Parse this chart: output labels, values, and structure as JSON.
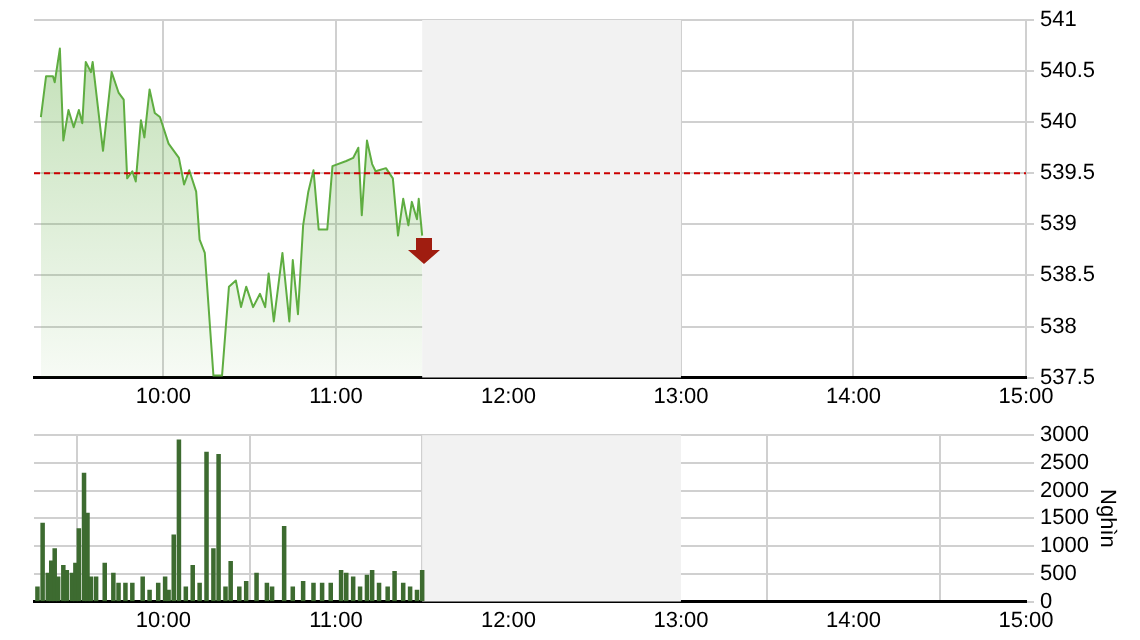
{
  "chart_data": [
    {
      "type": "area",
      "xlim": [
        9.25,
        15
      ],
      "xticks": [
        {
          "value": 10,
          "label": "10:00"
        },
        {
          "value": 11,
          "label": "11:00"
        },
        {
          "value": 12,
          "label": "12:00"
        },
        {
          "value": 13,
          "label": "13:00"
        },
        {
          "value": 14,
          "label": "14:00"
        },
        {
          "value": 15,
          "label": "15:00"
        }
      ],
      "ylim": [
        537.5,
        541
      ],
      "yticks": [
        537.5,
        538,
        538.5,
        539,
        539.5,
        540,
        540.5,
        541
      ],
      "grid": true,
      "legend": false,
      "ref_lines": [
        {
          "axis": "y",
          "value": 539.5,
          "color": "#cc0000",
          "line_style": "dashed"
        }
      ],
      "bands": [
        {
          "axis": "x",
          "from": 11.5,
          "to": 13,
          "color": "#f2f2f2"
        }
      ],
      "series": [
        {
          "color": "#5fad41",
          "x": [
            9.29,
            9.32,
            9.36,
            9.37,
            9.4,
            9.42,
            9.45,
            9.48,
            9.51,
            9.53,
            9.55,
            9.58,
            9.59,
            9.65,
            9.7,
            9.74,
            9.77,
            9.79,
            9.82,
            9.84,
            9.87,
            9.89,
            9.92,
            9.95,
            9.98,
            10.03,
            10.09,
            10.12,
            10.15,
            10.19,
            10.21,
            10.24,
            10.29,
            10.34,
            10.38,
            10.42,
            10.45,
            10.48,
            10.52,
            10.56,
            10.59,
            10.61,
            10.64,
            10.69,
            10.73,
            10.75,
            10.78,
            10.81,
            10.84,
            10.87,
            10.9,
            10.95,
            10.98,
            11.06,
            11.1,
            11.13,
            11.15,
            11.18,
            11.21,
            11.23,
            11.29,
            11.33,
            11.36,
            11.39,
            11.42,
            11.44,
            11.47,
            11.48,
            11.5
          ],
          "values": [
            540.05,
            540.45,
            540.45,
            540.39,
            540.72,
            539.82,
            540.12,
            539.95,
            540.12,
            539.99,
            540.59,
            540.49,
            540.59,
            539.72,
            540.49,
            540.29,
            540.22,
            539.45,
            539.52,
            539.42,
            540.02,
            539.85,
            540.32,
            540.09,
            540.05,
            539.79,
            539.65,
            539.39,
            539.53,
            539.32,
            538.85,
            538.72,
            537.52,
            537.52,
            538.39,
            538.45,
            538.19,
            538.39,
            538.19,
            538.32,
            538.19,
            538.52,
            538.05,
            538.72,
            538.05,
            538.65,
            538.12,
            538.99,
            539.32,
            539.53,
            538.95,
            538.95,
            539.57,
            539.62,
            539.65,
            539.75,
            539.09,
            539.82,
            539.59,
            539.52,
            539.55,
            539.45,
            538.89,
            539.25,
            538.99,
            539.22,
            539.05,
            539.25,
            538.89
          ]
        }
      ]
    },
    {
      "type": "bar",
      "ylabel": "Nghìn",
      "xlim": [
        9.25,
        15
      ],
      "xticks": [
        {
          "value": 10,
          "label": "10:00"
        },
        {
          "value": 11,
          "label": "11:00"
        },
        {
          "value": 12,
          "label": "12:00"
        },
        {
          "value": 13,
          "label": "13:00"
        },
        {
          "value": 14,
          "label": "14:00"
        },
        {
          "value": 15,
          "label": "15:00"
        }
      ],
      "ylim": [
        0,
        3000
      ],
      "yticks": [
        0,
        500,
        1000,
        1500,
        2000,
        2500,
        3000
      ],
      "grid": true,
      "legend": false,
      "bands": [
        {
          "axis": "x",
          "from": 11.5,
          "to": 13,
          "color": "#f2f2f2"
        }
      ],
      "series": [
        {
          "color": "#3d6b30",
          "x": [
            9.27,
            9.3,
            9.33,
            9.35,
            9.37,
            9.39,
            9.42,
            9.44,
            9.47,
            9.49,
            9.51,
            9.54,
            9.56,
            9.58,
            9.61,
            9.66,
            9.71,
            9.74,
            9.78,
            9.82,
            9.88,
            9.92,
            9.97,
            10.01,
            10.03,
            10.06,
            10.09,
            10.13,
            10.17,
            10.21,
            10.25,
            10.29,
            10.32,
            10.36,
            10.39,
            10.44,
            10.48,
            10.54,
            10.6,
            10.63,
            10.7,
            10.75,
            10.81,
            10.87,
            10.92,
            10.97,
            11.03,
            11.06,
            11.1,
            11.14,
            11.18,
            11.21,
            11.25,
            11.3,
            11.34,
            11.39,
            11.43,
            11.47,
            11.5
          ],
          "values": [
            260,
            1410,
            510,
            730,
            950,
            440,
            650,
            560,
            510,
            690,
            1310,
            2310,
            1590,
            440,
            440,
            690,
            510,
            330,
            330,
            330,
            440,
            200,
            330,
            440,
            200,
            1200,
            2910,
            260,
            650,
            330,
            2690,
            950,
            2650,
            260,
            720,
            260,
            360,
            510,
            330,
            260,
            1350,
            260,
            360,
            330,
            330,
            330,
            560,
            510,
            440,
            260,
            470,
            560,
            330,
            260,
            540,
            330,
            260,
            200,
            560
          ]
        }
      ]
    }
  ]
}
